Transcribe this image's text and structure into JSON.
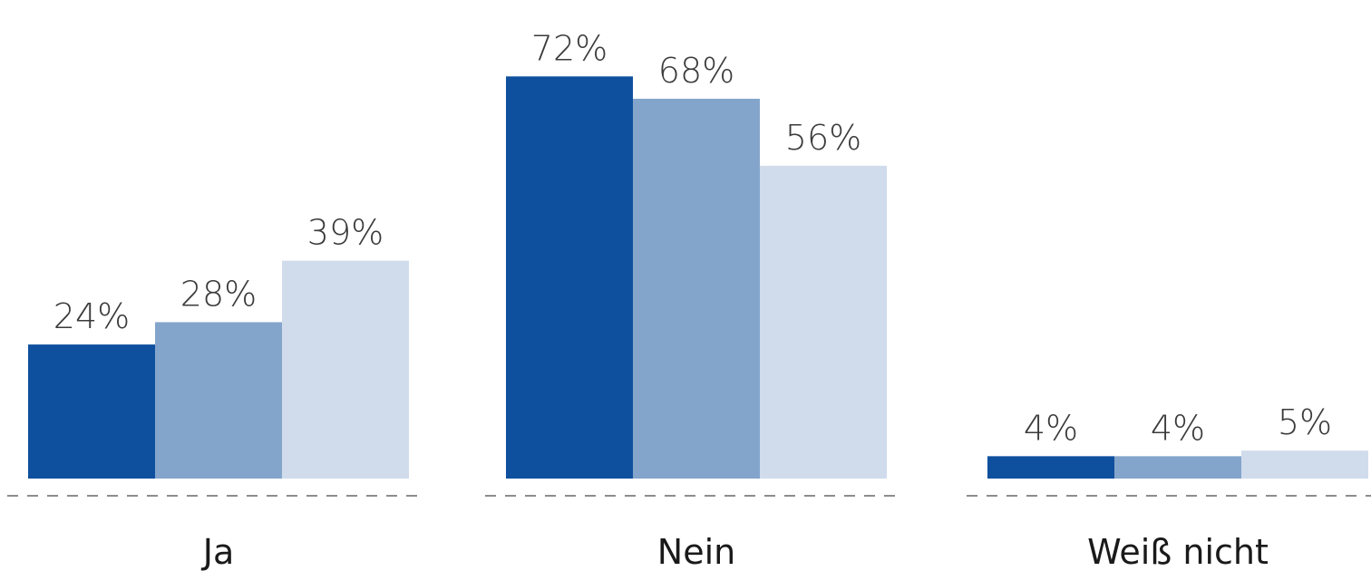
{
  "chart_data": {
    "type": "bar",
    "categories": [
      "Ja",
      "Nein",
      "Weiß nicht"
    ],
    "series": [
      {
        "color": "#0f509e",
        "values": [
          24,
          72,
          4
        ],
        "value_labels": [
          "24%",
          "72%",
          "4%"
        ]
      },
      {
        "color": "#84a5cb",
        "values": [
          28,
          68,
          4
        ],
        "value_labels": [
          "28%",
          "68%",
          "4%"
        ]
      },
      {
        "color": "#d0dcec",
        "values": [
          39,
          56,
          5
        ],
        "value_labels": [
          "39%",
          "56%",
          "5%"
        ]
      }
    ],
    "ylim": [
      0,
      80
    ]
  }
}
